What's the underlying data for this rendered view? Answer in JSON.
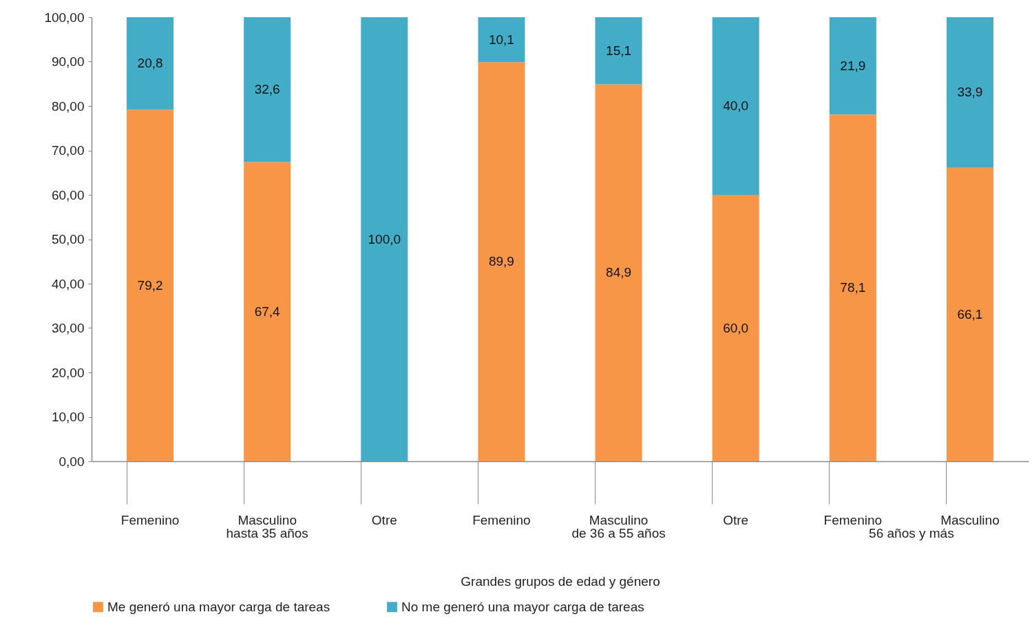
{
  "chart_data": {
    "type": "bar",
    "stacked": true,
    "xlabel": "Grandes grupos de edad y género",
    "categories": [
      "Femenino",
      "Masculino",
      "Otre",
      "Femenino",
      "Masculino",
      "Otre",
      "Femenino",
      "Masculino"
    ],
    "annotations": [
      "hasta 35 años",
      "de 36 a 55 años",
      "56 años y más"
    ],
    "series": [
      {
        "name": "Me generó una mayor carga de tareas",
        "color": "#f79646",
        "values": [
          79.2,
          67.4,
          0,
          89.9,
          84.9,
          60.0,
          78.1,
          66.1
        ],
        "value_labels": [
          "79,2",
          "67,4",
          null,
          "89,9",
          "84,9",
          "60,0",
          "78,1",
          "66,1"
        ]
      },
      {
        "name": "No me generó una mayor carga de tareas",
        "color": "#43acc6",
        "values": [
          20.8,
          32.6,
          100.0,
          10.1,
          15.1,
          40.0,
          21.9,
          33.9
        ],
        "value_labels": [
          "20,8",
          "32,6",
          "100,0",
          "10,1",
          "15,1",
          "40,0",
          "21,9",
          "33,9"
        ]
      }
    ],
    "ylim": [
      0,
      100
    ],
    "yticks": [
      {
        "value": 0,
        "label": "0,00"
      },
      {
        "value": 10,
        "label": "10,00"
      },
      {
        "value": 20,
        "label": "20,00"
      },
      {
        "value": 30,
        "label": "30,00"
      },
      {
        "value": 40,
        "label": "40,00"
      },
      {
        "value": 50,
        "label": "50,00"
      },
      {
        "value": 60,
        "label": "60,00"
      },
      {
        "value": 70,
        "label": "70,00"
      },
      {
        "value": 80,
        "label": "80,00"
      },
      {
        "value": 90,
        "label": "90,00"
      },
      {
        "value": 100,
        "label": "100,00"
      }
    ],
    "grid": false,
    "legend": "bottom"
  }
}
